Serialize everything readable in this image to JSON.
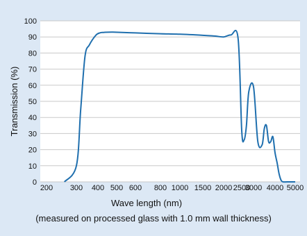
{
  "chart_data": {
    "type": "line",
    "title": "",
    "xlabel": "Wave length (nm)",
    "ylabel": "Transmission (%)",
    "note": "(measured on processed glass with 1.0 mm wall thickness)",
    "x_tick_labels": [
      "200",
      "300",
      "400",
      "500",
      "600",
      "800",
      "1000",
      "1500",
      "2000",
      "2500",
      "3000",
      "4000",
      "5000"
    ],
    "y_ticks": [
      0,
      10,
      20,
      30,
      40,
      50,
      60,
      70,
      80,
      90,
      100
    ],
    "ylim": [
      0,
      100
    ],
    "grid": true,
    "line_color": "#1f6fae",
    "series": [
      {
        "x": [
          "260",
          "300",
          "320",
          "340",
          "360",
          "390",
          "410",
          "430",
          "480",
          "600",
          "800",
          "1000",
          "1500",
          "1800",
          "2000",
          "2200",
          "2400",
          "2500",
          "2600",
          "2700",
          "2800",
          "3000",
          "3200",
          "3400",
          "3500",
          "3600",
          "3700",
          "3800",
          "3900",
          "4000",
          "4100",
          "4200",
          "4300",
          "4400",
          "4600",
          "5000"
        ],
        "values": [
          0,
          10,
          45,
          78,
          85,
          91,
          92.5,
          92.8,
          93,
          92.5,
          92,
          91.7,
          91,
          90.5,
          90,
          91.2,
          89,
          32,
          26,
          35,
          56,
          59,
          25,
          23,
          33,
          35,
          25,
          25,
          28,
          18,
          12,
          5,
          1,
          0,
          0,
          0
        ]
      }
    ]
  }
}
